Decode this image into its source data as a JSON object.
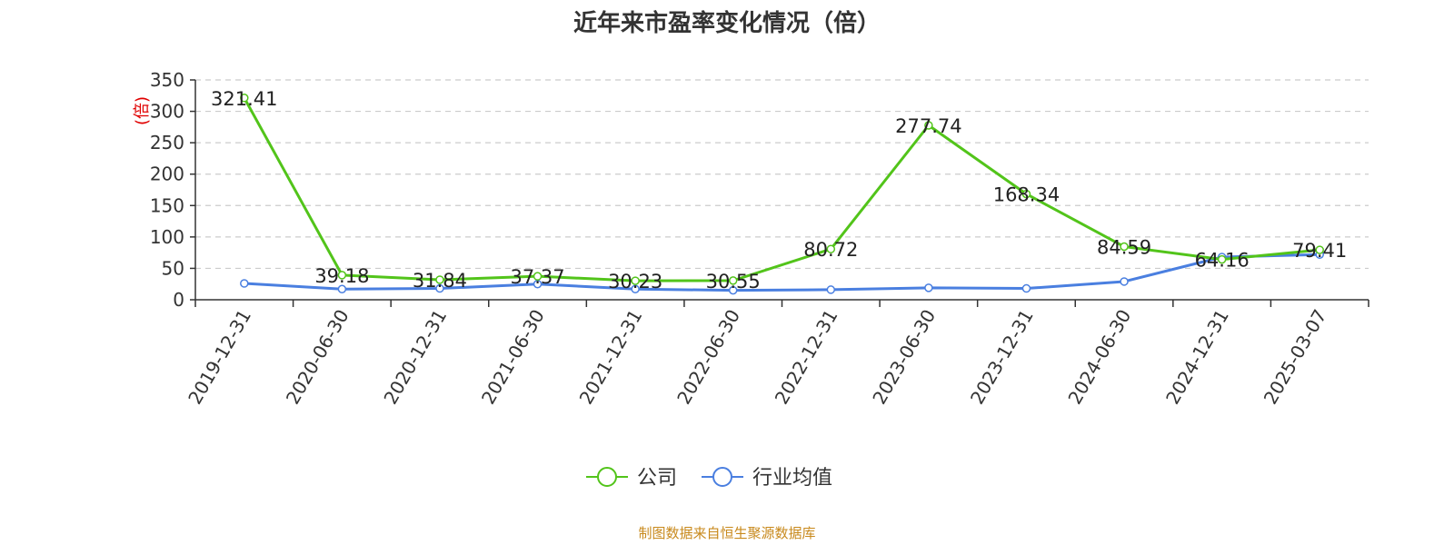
{
  "chart_data": {
    "type": "line",
    "title": "近年来市盈率变化情况（倍）",
    "ylabel": "(倍)",
    "xlabel": "",
    "categories": [
      "2019-12-31",
      "2020-06-30",
      "2020-12-31",
      "2021-06-30",
      "2021-12-31",
      "2022-06-30",
      "2022-12-31",
      "2023-06-30",
      "2023-12-31",
      "2024-06-30",
      "2024-12-31",
      "2025-03-07"
    ],
    "ylim": [
      0,
      350
    ],
    "yticks": [
      "0",
      "50",
      "100",
      "150",
      "200",
      "250",
      "300",
      "350"
    ],
    "grid": "horizontal dashed",
    "legend_position": "bottom-center",
    "series": [
      {
        "name": "公司",
        "color": "#52c41a",
        "values": [
          321.41,
          39.18,
          31.84,
          37.37,
          30.23,
          30.55,
          80.72,
          277.74,
          168.34,
          84.59,
          64.16,
          79.41
        ],
        "labels": [
          "321.41",
          "39.18",
          "31.84",
          "37.37",
          "30.23",
          "30.55",
          "80.72",
          "277.74",
          "168.34",
          "84.59",
          "64.16",
          "79.41"
        ]
      },
      {
        "name": "行业均值",
        "color": "#4a7fe0",
        "values": [
          26,
          17,
          18,
          25,
          17,
          15,
          16,
          19,
          18,
          29,
          68,
          72
        ]
      }
    ],
    "source": "制图数据来自恒生聚源数据库",
    "colors": {
      "axis": "#333333",
      "grid": "#cccccc",
      "unit": "#e00000",
      "source": "#c8891c"
    }
  }
}
